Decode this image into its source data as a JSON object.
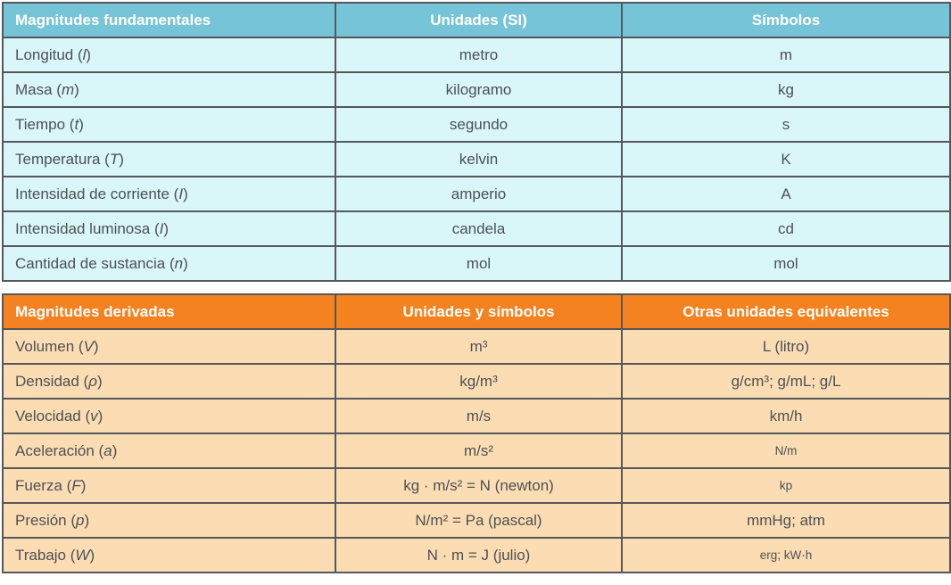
{
  "colors": {
    "table1_header_bg": "#76c4d7",
    "table1_row_bg": "#d9f6f9",
    "table2_header_bg": "#f58220",
    "table2_row_bg": "#fbdcb3",
    "border": "#54585a",
    "body_text": "#4d5154",
    "header_text": "#ffffff"
  },
  "table1": {
    "headers": [
      "Magnitudes fundamentales",
      "Unidades (SI)",
      "Símbolos"
    ],
    "rows": [
      {
        "name": "Longitud",
        "letter": "l",
        "unit": "metro",
        "symbol": "m"
      },
      {
        "name": "Masa",
        "letter": "m",
        "unit": "kilogramo",
        "symbol": "kg"
      },
      {
        "name": "Tiempo",
        "letter": "t",
        "unit": "segundo",
        "symbol": "s"
      },
      {
        "name": "Temperatura",
        "letter": "T",
        "unit": "kelvin",
        "symbol": "K"
      },
      {
        "name": "Intensidad de corriente",
        "letter": "I",
        "unit": "amperio",
        "symbol": "A"
      },
      {
        "name": "Intensidad luminosa",
        "letter": "I",
        "unit": "candela",
        "symbol": "cd"
      },
      {
        "name": "Cantidad de sustancia",
        "letter": "n",
        "unit": "mol",
        "symbol": "mol"
      }
    ]
  },
  "table2": {
    "headers": [
      "Magnitudes derivadas",
      "Unidades y símbolos",
      "Otras unidades equivalentes"
    ],
    "rows": [
      {
        "name": "Volumen",
        "letter": "V",
        "units": "m³",
        "equiv": "L (litro)",
        "equiv_small": false
      },
      {
        "name": "Densidad",
        "letter": "ρ",
        "units": "kg/m³",
        "equiv": "g/cm³; g/mL; g/L",
        "equiv_small": false
      },
      {
        "name": "Velocidad",
        "letter": "v",
        "units": "m/s",
        "equiv": "km/h",
        "equiv_small": false
      },
      {
        "name": "Aceleración",
        "letter": "a",
        "units": "m/s²",
        "equiv": "N/m",
        "equiv_small": true
      },
      {
        "name": "Fuerza",
        "letter": "F",
        "units": "kg · m/s² = N (newton)",
        "equiv": "kp",
        "equiv_small": true
      },
      {
        "name": "Presión",
        "letter": "p",
        "units": "N/m² = Pa (pascal)",
        "equiv": "mmHg; atm",
        "equiv_small": false
      },
      {
        "name": "Trabajo",
        "letter": "W",
        "units": "N · m = J (julio)",
        "equiv": "erg; kW·h",
        "equiv_small": true
      }
    ]
  }
}
